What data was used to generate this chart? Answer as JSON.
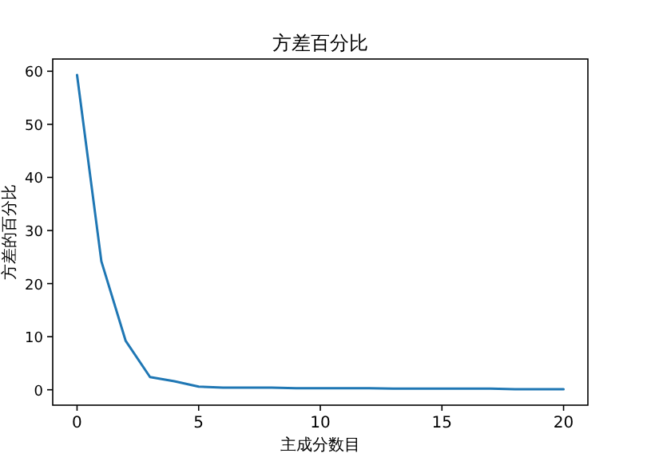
{
  "chart_data": {
    "type": "line",
    "title": "方差百分比",
    "xlabel": "主成分数目",
    "ylabel": "方差的百分比",
    "x": [
      0,
      1,
      2,
      3,
      4,
      5,
      6,
      7,
      8,
      9,
      10,
      11,
      12,
      13,
      14,
      15,
      16,
      17,
      18,
      19,
      20
    ],
    "series": [
      {
        "color": "#1f77b4",
        "values": [
          59.3,
          24.2,
          9.2,
          2.4,
          1.6,
          0.6,
          0.4,
          0.4,
          0.4,
          0.3,
          0.3,
          0.3,
          0.3,
          0.2,
          0.2,
          0.2,
          0.2,
          0.2,
          0.1,
          0.1,
          0.1
        ]
      }
    ],
    "xlim": [
      -1,
      21
    ],
    "ylim": [
      -2.9,
      62.3
    ],
    "xticks": [
      0,
      5,
      10,
      15,
      20
    ],
    "yticks": [
      0,
      10,
      20,
      30,
      40,
      50,
      60
    ],
    "grid": false,
    "marker": "none",
    "line_style": "solid"
  }
}
